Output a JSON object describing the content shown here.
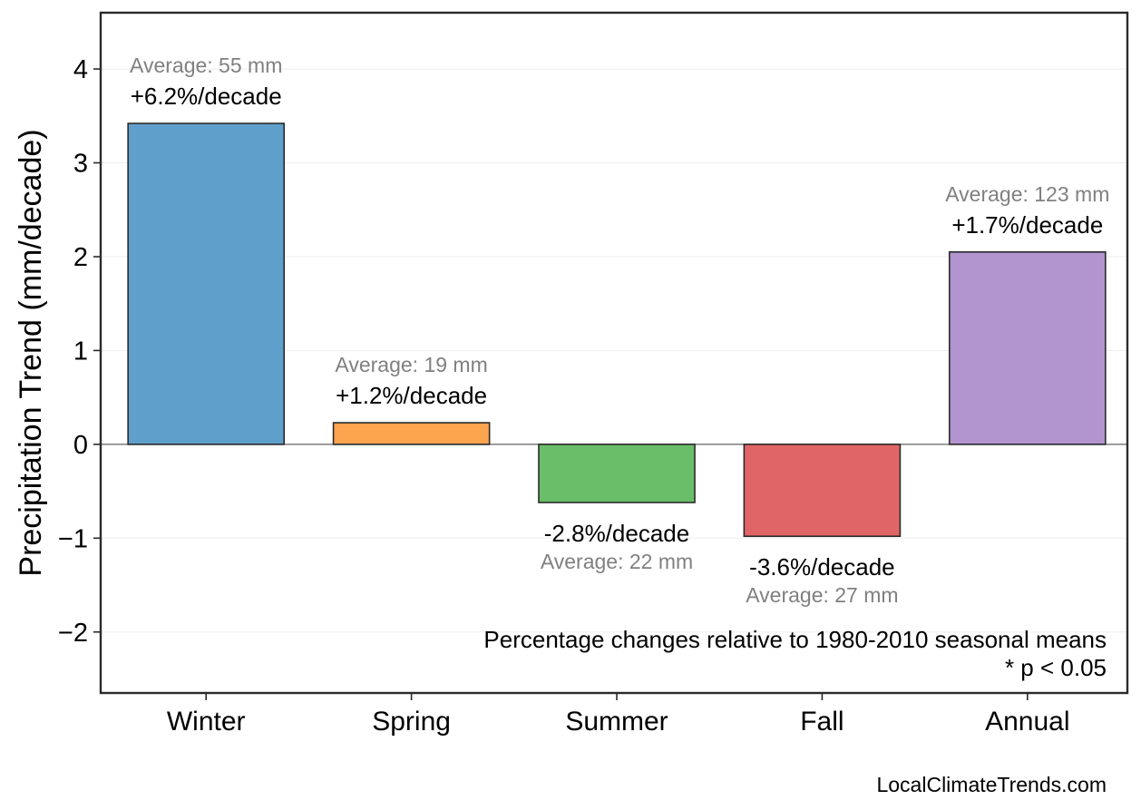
{
  "chart_data": {
    "type": "bar",
    "title": "",
    "xlabel": "",
    "ylabel": "Precipitation Trend (mm/decade)",
    "categories": [
      "Winter",
      "Spring",
      "Summer",
      "Fall",
      "Annual"
    ],
    "values": [
      3.42,
      0.23,
      -0.62,
      -0.98,
      2.05
    ],
    "colors": [
      "#5e9fcb",
      "#fda44f",
      "#6abd69",
      "#e06566",
      "#b294cf"
    ],
    "percent_labels": [
      "+6.2%/decade",
      "+1.2%/decade",
      "-2.8%/decade",
      "-3.6%/decade",
      "+1.7%/decade"
    ],
    "average_labels": [
      "Average: 55 mm",
      "Average: 19 mm",
      "Average: 22 mm",
      "Average: 27 mm",
      "Average: 123 mm"
    ],
    "ylim": [
      -2.65,
      4.6
    ],
    "yticks": [
      -2,
      -1,
      0,
      1,
      2,
      3,
      4
    ],
    "ytick_labels": [
      "−2",
      "−1",
      "0",
      "1",
      "2",
      "3",
      "4"
    ],
    "grid": "horizontal",
    "note_lines": [
      "Percentage changes relative to 1980-2010 seasonal means",
      "* p < 0.05"
    ],
    "source": "LocalClimateTrends.com"
  }
}
